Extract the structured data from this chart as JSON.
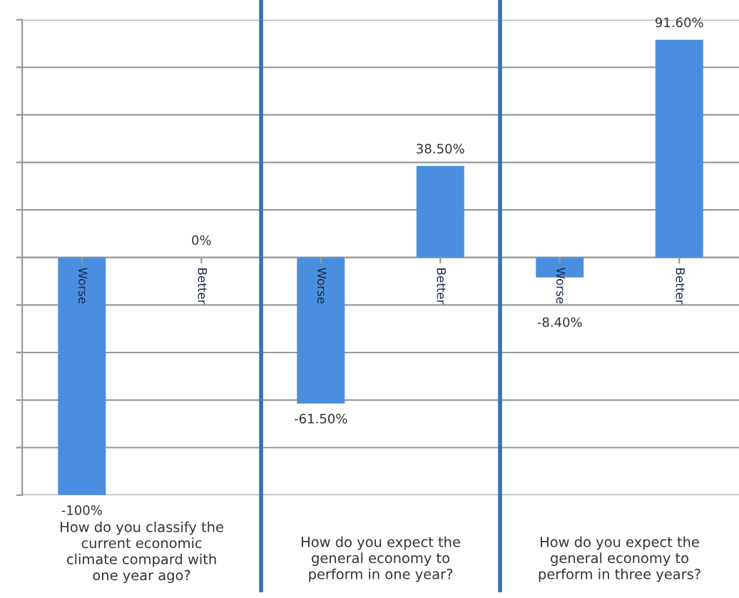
{
  "chart_data": {
    "type": "bar",
    "categories": [
      "Worse",
      "Better",
      "Worse",
      "Better",
      "Worse",
      "Better"
    ],
    "values": [
      -100,
      0,
      -61.5,
      38.5,
      -8.4,
      91.6
    ],
    "value_labels": [
      "-100%",
      "0%",
      "-61.50%",
      "38.50%",
      "-8.40%",
      "91.60%"
    ],
    "color": "#4a8fdf",
    "ylim": [
      -100,
      100
    ],
    "yticks": [
      {
        "value": -100,
        "label": null
      },
      {
        "value": -80,
        "label": null
      },
      {
        "value": -60,
        "label": null
      },
      {
        "value": -40,
        "label": null
      },
      {
        "value": -20,
        "label": null
      },
      {
        "value": 0,
        "label": null
      },
      {
        "value": 20,
        "label": null
      },
      {
        "value": 40,
        "label": null
      },
      {
        "value": 60,
        "label": null
      },
      {
        "value": 80,
        "label": null
      },
      {
        "value": 100,
        "label": null
      }
    ],
    "grid": "y",
    "annotations": [
      "How do you classify the\ncurrent economic\nclimate compard with\none year ago?",
      "How do you expect the\ngeneral economy to\nperform in one year?",
      "How do you expect the\ngeneral economy to\nperform in three years?"
    ]
  }
}
